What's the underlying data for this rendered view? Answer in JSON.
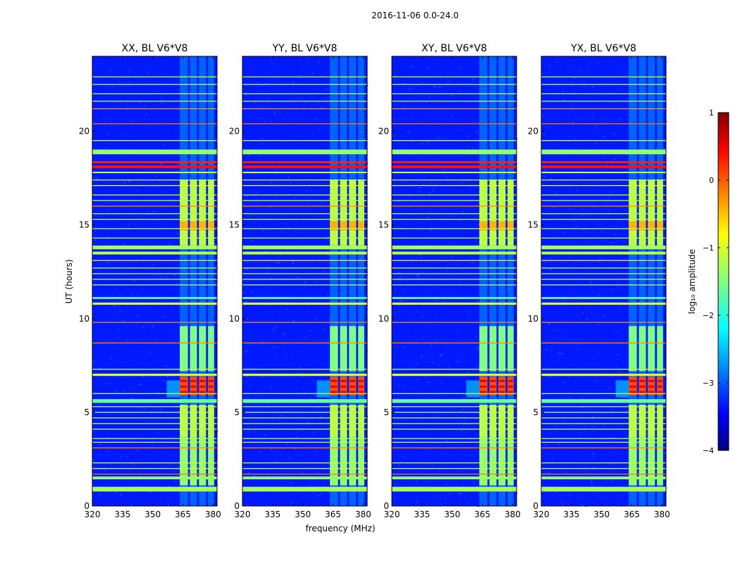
{
  "figure_title": "2016-11-06 0.0-24.0",
  "colors": {
    "band_blue": "#1030d8",
    "axis": "#000000",
    "background": "#ffffff"
  },
  "chart_data": {
    "type": "heatmap",
    "title": "2016-11-06 0.0-24.0",
    "xlabel": "frequency (MHz)",
    "ylabel": "UT (hours)",
    "xlim": [
      320,
      382
    ],
    "ylim": [
      0,
      24
    ],
    "xticks": [
      320,
      335,
      350,
      365,
      380
    ],
    "yticks": [
      0,
      5,
      10,
      15,
      20
    ],
    "panels": [
      {
        "title": "XX, BL V6*V8",
        "polarization": "XX"
      },
      {
        "title": "YY, BL V6*V8",
        "polarization": "YY"
      },
      {
        "title": "XY, BL V6*V8",
        "polarization": "XY"
      },
      {
        "title": "YX, BL V6*V8",
        "polarization": "YX"
      }
    ],
    "colorbar": {
      "label": "log₁₀ amplitude",
      "range": [
        -4,
        1
      ],
      "ticks": [
        "1",
        "0",
        "−1",
        "−2",
        "−3",
        "−4"
      ],
      "colormap": "jet"
    },
    "bright_region_mhz": [
      363.5,
      380
    ],
    "bright_columns_mhz": [
      [
        363.5,
        367.5
      ],
      [
        368.5,
        372
      ],
      [
        373,
        376.5
      ],
      [
        377.5,
        380.5
      ]
    ],
    "horizontal_bands": [
      {
        "ut": 0.9,
        "level": -1.3,
        "thickness": 0.25
      },
      {
        "ut": 1.5,
        "level": -1.4,
        "thickness": 0.15
      },
      {
        "ut": 1.7,
        "level": -0.2,
        "thickness": 0.05
      },
      {
        "ut": 2.0,
        "level": -1.1,
        "thickness": 0.05
      },
      {
        "ut": 2.3,
        "level": -1.1,
        "thickness": 0.05
      },
      {
        "ut": 3.1,
        "level": -0.3,
        "thickness": 0.05
      },
      {
        "ut": 3.4,
        "level": -1.2,
        "thickness": 0.05
      },
      {
        "ut": 3.6,
        "level": -1.2,
        "thickness": 0.05
      },
      {
        "ut": 4.1,
        "level": -1.2,
        "thickness": 0.05
      },
      {
        "ut": 4.4,
        "level": -1.2,
        "thickness": 0.05
      },
      {
        "ut": 4.7,
        "level": -1.2,
        "thickness": 0.05
      },
      {
        "ut": 5.0,
        "level": -1.2,
        "thickness": 0.05
      },
      {
        "ut": 5.3,
        "level": -1.2,
        "thickness": 0.05
      },
      {
        "ut": 5.6,
        "level": -1.6,
        "thickness": 0.2
      },
      {
        "ut": 6.0,
        "level": -1.2,
        "thickness": 0.05
      },
      {
        "ut": 7.0,
        "level": -1.0,
        "thickness": 0.12
      },
      {
        "ut": 7.3,
        "level": -1.2,
        "thickness": 0.05
      },
      {
        "ut": 8.7,
        "level": -0.3,
        "thickness": 0.05
      },
      {
        "ut": 9.8,
        "level": -0.3,
        "thickness": 0.05
      },
      {
        "ut": 10.8,
        "level": -1.0,
        "thickness": 0.12
      },
      {
        "ut": 11.1,
        "level": -1.6,
        "thickness": 0.1
      },
      {
        "ut": 11.8,
        "level": -1.2,
        "thickness": 0.05
      },
      {
        "ut": 12.1,
        "level": -1.2,
        "thickness": 0.05
      },
      {
        "ut": 12.4,
        "level": -1.2,
        "thickness": 0.05
      },
      {
        "ut": 12.7,
        "level": -1.2,
        "thickness": 0.05
      },
      {
        "ut": 13.1,
        "level": -0.8,
        "thickness": 0.05
      },
      {
        "ut": 13.5,
        "level": -1.2,
        "thickness": 0.15
      },
      {
        "ut": 13.8,
        "level": -1.3,
        "thickness": 0.2
      },
      {
        "ut": 14.3,
        "level": -1.2,
        "thickness": 0.05
      },
      {
        "ut": 14.8,
        "level": -1.2,
        "thickness": 0.05
      },
      {
        "ut": 15.3,
        "level": -1.2,
        "thickness": 0.05
      },
      {
        "ut": 15.6,
        "level": -1.2,
        "thickness": 0.05
      },
      {
        "ut": 16.0,
        "level": -0.3,
        "thickness": 0.05
      },
      {
        "ut": 16.3,
        "level": -1.2,
        "thickness": 0.05
      },
      {
        "ut": 16.6,
        "level": -1.2,
        "thickness": 0.05
      },
      {
        "ut": 17.1,
        "level": -1.0,
        "thickness": 0.05
      },
      {
        "ut": 17.4,
        "level": -1.2,
        "thickness": 0.05
      },
      {
        "ut": 17.8,
        "level": -1.2,
        "thickness": 0.08
      },
      {
        "ut": 18.1,
        "level": 0.3,
        "thickness": 0.15
      },
      {
        "ut": 18.35,
        "level": 0.2,
        "thickness": 0.1
      },
      {
        "ut": 18.9,
        "level": -1.4,
        "thickness": 0.25
      },
      {
        "ut": 19.5,
        "level": -1.0,
        "thickness": 0.05
      },
      {
        "ut": 20.4,
        "level": -0.2,
        "thickness": 0.05
      },
      {
        "ut": 21.2,
        "level": -0.4,
        "thickness": 0.05
      },
      {
        "ut": 21.6,
        "level": -1.2,
        "thickness": 0.05
      },
      {
        "ut": 22.0,
        "level": -1.2,
        "thickness": 0.05
      },
      {
        "ut": 22.5,
        "level": -1.2,
        "thickness": 0.05
      },
      {
        "ut": 22.9,
        "level": -1.2,
        "thickness": 0.05
      }
    ]
  }
}
